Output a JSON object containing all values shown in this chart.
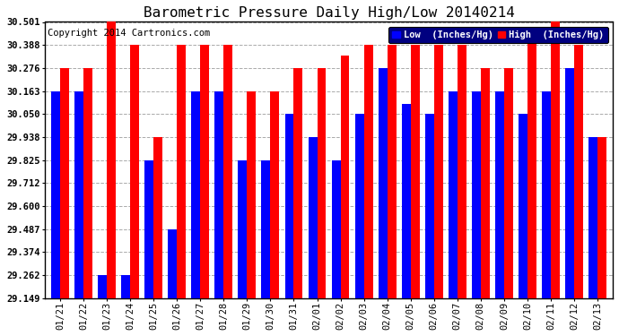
{
  "title": "Barometric Pressure Daily High/Low 20140214",
  "copyright": "Copyright 2014 Cartronics.com",
  "legend_low": "Low  (Inches/Hg)",
  "legend_high": "High  (Inches/Hg)",
  "dates": [
    "01/21",
    "01/22",
    "01/23",
    "01/24",
    "01/25",
    "01/26",
    "01/27",
    "01/28",
    "01/29",
    "01/30",
    "01/31",
    "02/01",
    "02/02",
    "02/03",
    "02/04",
    "02/05",
    "02/06",
    "02/07",
    "02/08",
    "02/09",
    "02/10",
    "02/11",
    "02/12",
    "02/13"
  ],
  "low_values": [
    30.163,
    30.163,
    29.262,
    29.262,
    29.825,
    29.487,
    30.163,
    30.163,
    29.825,
    29.825,
    30.05,
    29.938,
    29.825,
    30.05,
    30.276,
    30.1,
    30.05,
    30.163,
    30.163,
    30.163,
    30.05,
    30.163,
    30.276,
    29.938
  ],
  "high_values": [
    30.276,
    30.276,
    30.501,
    30.388,
    29.938,
    30.388,
    30.388,
    30.388,
    30.163,
    30.163,
    30.276,
    30.276,
    30.338,
    30.388,
    30.388,
    30.388,
    30.388,
    30.388,
    30.276,
    30.276,
    30.45,
    30.501,
    30.388,
    29.938
  ],
  "low_color": "#0000ff",
  "high_color": "#ff0000",
  "background_color": "#ffffff",
  "grid_color": "#aaaaaa",
  "ylim_min": 29.149,
  "ylim_max": 30.501,
  "yticks": [
    29.149,
    29.262,
    29.374,
    29.487,
    29.6,
    29.712,
    29.825,
    29.938,
    30.05,
    30.163,
    30.276,
    30.388,
    30.501
  ],
  "title_fontsize": 11.5,
  "tick_fontsize": 7.5,
  "legend_fontsize": 7.5,
  "copyright_fontsize": 7.5
}
